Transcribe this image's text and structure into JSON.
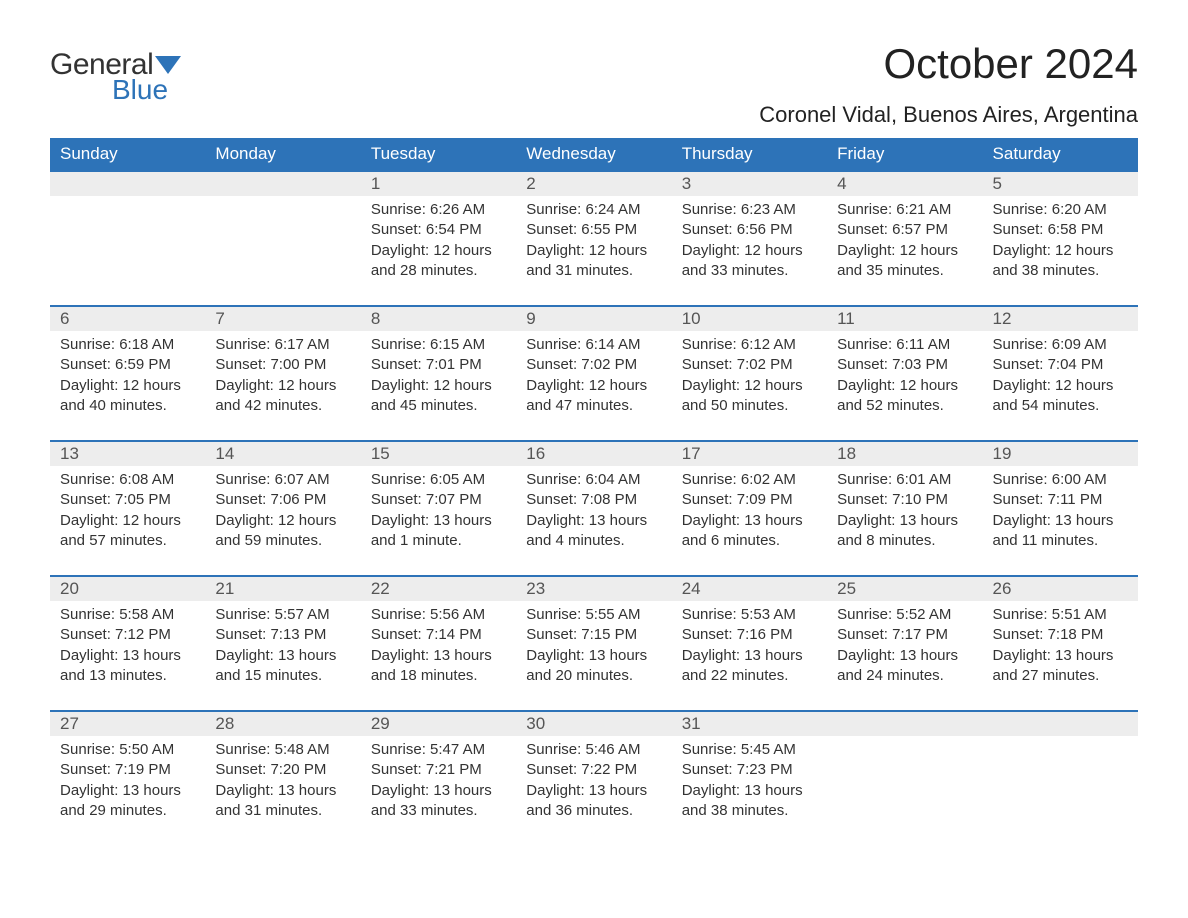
{
  "logo": {
    "text1": "General",
    "text2": "Blue",
    "color1": "#333333",
    "color2": "#2d73b8"
  },
  "title": "October 2024",
  "location": "Coronel Vidal, Buenos Aires, Argentina",
  "colors": {
    "header_bg": "#2d73b8",
    "header_text": "#ffffff",
    "daynum_bg": "#ededed",
    "daynum_text": "#555555",
    "body_text": "#333333",
    "row_border": "#2d73b8",
    "page_bg": "#ffffff"
  },
  "day_headers": [
    "Sunday",
    "Monday",
    "Tuesday",
    "Wednesday",
    "Thursday",
    "Friday",
    "Saturday"
  ],
  "weeks": [
    [
      null,
      null,
      {
        "n": "1",
        "sunrise": "Sunrise: 6:26 AM",
        "sunset": "Sunset: 6:54 PM",
        "dl1": "Daylight: 12 hours",
        "dl2": "and 28 minutes."
      },
      {
        "n": "2",
        "sunrise": "Sunrise: 6:24 AM",
        "sunset": "Sunset: 6:55 PM",
        "dl1": "Daylight: 12 hours",
        "dl2": "and 31 minutes."
      },
      {
        "n": "3",
        "sunrise": "Sunrise: 6:23 AM",
        "sunset": "Sunset: 6:56 PM",
        "dl1": "Daylight: 12 hours",
        "dl2": "and 33 minutes."
      },
      {
        "n": "4",
        "sunrise": "Sunrise: 6:21 AM",
        "sunset": "Sunset: 6:57 PM",
        "dl1": "Daylight: 12 hours",
        "dl2": "and 35 minutes."
      },
      {
        "n": "5",
        "sunrise": "Sunrise: 6:20 AM",
        "sunset": "Sunset: 6:58 PM",
        "dl1": "Daylight: 12 hours",
        "dl2": "and 38 minutes."
      }
    ],
    [
      {
        "n": "6",
        "sunrise": "Sunrise: 6:18 AM",
        "sunset": "Sunset: 6:59 PM",
        "dl1": "Daylight: 12 hours",
        "dl2": "and 40 minutes."
      },
      {
        "n": "7",
        "sunrise": "Sunrise: 6:17 AM",
        "sunset": "Sunset: 7:00 PM",
        "dl1": "Daylight: 12 hours",
        "dl2": "and 42 minutes."
      },
      {
        "n": "8",
        "sunrise": "Sunrise: 6:15 AM",
        "sunset": "Sunset: 7:01 PM",
        "dl1": "Daylight: 12 hours",
        "dl2": "and 45 minutes."
      },
      {
        "n": "9",
        "sunrise": "Sunrise: 6:14 AM",
        "sunset": "Sunset: 7:02 PM",
        "dl1": "Daylight: 12 hours",
        "dl2": "and 47 minutes."
      },
      {
        "n": "10",
        "sunrise": "Sunrise: 6:12 AM",
        "sunset": "Sunset: 7:02 PM",
        "dl1": "Daylight: 12 hours",
        "dl2": "and 50 minutes."
      },
      {
        "n": "11",
        "sunrise": "Sunrise: 6:11 AM",
        "sunset": "Sunset: 7:03 PM",
        "dl1": "Daylight: 12 hours",
        "dl2": "and 52 minutes."
      },
      {
        "n": "12",
        "sunrise": "Sunrise: 6:09 AM",
        "sunset": "Sunset: 7:04 PM",
        "dl1": "Daylight: 12 hours",
        "dl2": "and 54 minutes."
      }
    ],
    [
      {
        "n": "13",
        "sunrise": "Sunrise: 6:08 AM",
        "sunset": "Sunset: 7:05 PM",
        "dl1": "Daylight: 12 hours",
        "dl2": "and 57 minutes."
      },
      {
        "n": "14",
        "sunrise": "Sunrise: 6:07 AM",
        "sunset": "Sunset: 7:06 PM",
        "dl1": "Daylight: 12 hours",
        "dl2": "and 59 minutes."
      },
      {
        "n": "15",
        "sunrise": "Sunrise: 6:05 AM",
        "sunset": "Sunset: 7:07 PM",
        "dl1": "Daylight: 13 hours",
        "dl2": "and 1 minute."
      },
      {
        "n": "16",
        "sunrise": "Sunrise: 6:04 AM",
        "sunset": "Sunset: 7:08 PM",
        "dl1": "Daylight: 13 hours",
        "dl2": "and 4 minutes."
      },
      {
        "n": "17",
        "sunrise": "Sunrise: 6:02 AM",
        "sunset": "Sunset: 7:09 PM",
        "dl1": "Daylight: 13 hours",
        "dl2": "and 6 minutes."
      },
      {
        "n": "18",
        "sunrise": "Sunrise: 6:01 AM",
        "sunset": "Sunset: 7:10 PM",
        "dl1": "Daylight: 13 hours",
        "dl2": "and 8 minutes."
      },
      {
        "n": "19",
        "sunrise": "Sunrise: 6:00 AM",
        "sunset": "Sunset: 7:11 PM",
        "dl1": "Daylight: 13 hours",
        "dl2": "and 11 minutes."
      }
    ],
    [
      {
        "n": "20",
        "sunrise": "Sunrise: 5:58 AM",
        "sunset": "Sunset: 7:12 PM",
        "dl1": "Daylight: 13 hours",
        "dl2": "and 13 minutes."
      },
      {
        "n": "21",
        "sunrise": "Sunrise: 5:57 AM",
        "sunset": "Sunset: 7:13 PM",
        "dl1": "Daylight: 13 hours",
        "dl2": "and 15 minutes."
      },
      {
        "n": "22",
        "sunrise": "Sunrise: 5:56 AM",
        "sunset": "Sunset: 7:14 PM",
        "dl1": "Daylight: 13 hours",
        "dl2": "and 18 minutes."
      },
      {
        "n": "23",
        "sunrise": "Sunrise: 5:55 AM",
        "sunset": "Sunset: 7:15 PM",
        "dl1": "Daylight: 13 hours",
        "dl2": "and 20 minutes."
      },
      {
        "n": "24",
        "sunrise": "Sunrise: 5:53 AM",
        "sunset": "Sunset: 7:16 PM",
        "dl1": "Daylight: 13 hours",
        "dl2": "and 22 minutes."
      },
      {
        "n": "25",
        "sunrise": "Sunrise: 5:52 AM",
        "sunset": "Sunset: 7:17 PM",
        "dl1": "Daylight: 13 hours",
        "dl2": "and 24 minutes."
      },
      {
        "n": "26",
        "sunrise": "Sunrise: 5:51 AM",
        "sunset": "Sunset: 7:18 PM",
        "dl1": "Daylight: 13 hours",
        "dl2": "and 27 minutes."
      }
    ],
    [
      {
        "n": "27",
        "sunrise": "Sunrise: 5:50 AM",
        "sunset": "Sunset: 7:19 PM",
        "dl1": "Daylight: 13 hours",
        "dl2": "and 29 minutes."
      },
      {
        "n": "28",
        "sunrise": "Sunrise: 5:48 AM",
        "sunset": "Sunset: 7:20 PM",
        "dl1": "Daylight: 13 hours",
        "dl2": "and 31 minutes."
      },
      {
        "n": "29",
        "sunrise": "Sunrise: 5:47 AM",
        "sunset": "Sunset: 7:21 PM",
        "dl1": "Daylight: 13 hours",
        "dl2": "and 33 minutes."
      },
      {
        "n": "30",
        "sunrise": "Sunrise: 5:46 AM",
        "sunset": "Sunset: 7:22 PM",
        "dl1": "Daylight: 13 hours",
        "dl2": "and 36 minutes."
      },
      {
        "n": "31",
        "sunrise": "Sunrise: 5:45 AM",
        "sunset": "Sunset: 7:23 PM",
        "dl1": "Daylight: 13 hours",
        "dl2": "and 38 minutes."
      },
      null,
      null
    ]
  ]
}
